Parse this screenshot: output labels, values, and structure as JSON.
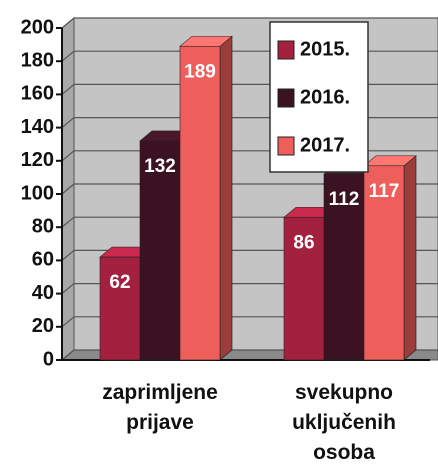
{
  "chart_data": {
    "type": "bar3d",
    "categories": [
      "zaprimljene prijave",
      "svekupno uključenih osoba"
    ],
    "series": [
      {
        "name": "2015.",
        "color": "#a3213f",
        "values": [
          62,
          86
        ]
      },
      {
        "name": "2016.",
        "color": "#3b1222",
        "values": [
          132,
          112
        ]
      },
      {
        "name": "2017.",
        "color": "#ee5f5b",
        "values": [
          189,
          117
        ]
      }
    ],
    "ylim": [
      0,
      200
    ],
    "yticks": [
      0,
      20,
      40,
      60,
      80,
      100,
      120,
      140,
      160,
      180,
      200
    ],
    "grid": true,
    "legend": "top-right"
  }
}
